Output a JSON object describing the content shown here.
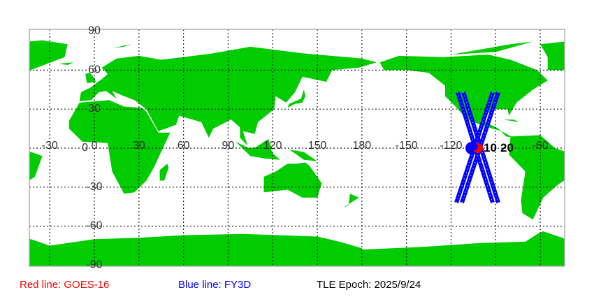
{
  "map": {
    "projection": "equirectangular",
    "center_longitude": 136,
    "land_color": "#00cc00",
    "ocean_color": "#ffffff",
    "grid_style": "dotted",
    "lat_labels": [
      "90",
      "60",
      "30",
      "0",
      "-30",
      "-60",
      "-90"
    ],
    "lon_labels": [
      "-30",
      "0",
      "30",
      "60",
      "90",
      "120",
      "150",
      "180",
      "-150",
      "-120",
      "-60"
    ],
    "track_labels": [
      "10",
      "20"
    ]
  },
  "legend": {
    "red": {
      "text": "Red line: GOES-16",
      "color": "#ff0000"
    },
    "blue": {
      "text": "Blue line: FY3D",
      "color": "#0000ff"
    },
    "epoch": {
      "text": "TLE Epoch: 2025/9/24",
      "color": "#000000"
    }
  }
}
